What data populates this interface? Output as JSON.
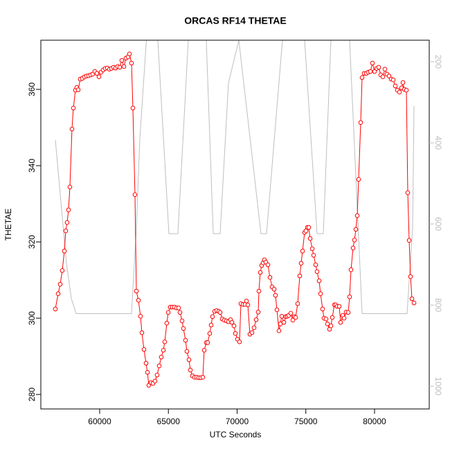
{
  "chart_data": {
    "type": "line",
    "title": "ORCAS RF14 THETAE",
    "x_label": "UTC Seconds",
    "y_label": "THETAE",
    "xlim": [
      55720,
      83980
    ],
    "xticks": [
      60000,
      65000,
      70000,
      75000,
      80000
    ],
    "ylim": [
      276.2,
      372.9
    ],
    "yticks": [
      280,
      300,
      320,
      340,
      360
    ],
    "y2lim": [
      1056,
      147
    ],
    "y2ticks": [
      200,
      400,
      600,
      800,
      1000
    ],
    "y2_color": "#bebebe",
    "series": [
      {
        "color": "#ff0000",
        "markers": true,
        "x": [
          56776,
          56977,
          57128,
          57279,
          57431,
          57531,
          57632,
          57733,
          57834,
          57985,
          58086,
          58237,
          58337,
          58438,
          58589,
          58740,
          58892,
          59043,
          59194,
          59345,
          59496,
          59647,
          59798,
          59950,
          60101,
          60252,
          60403,
          60554,
          60705,
          60856,
          61008,
          61159,
          61310,
          61461,
          61612,
          61763,
          61914,
          62066,
          62166,
          62317,
          62418,
          62569,
          62670,
          62821,
          62972,
          63073,
          63224,
          63375,
          63476,
          63577,
          63728,
          63879,
          64030,
          64181,
          64332,
          64484,
          64635,
          64735,
          64887,
          64987,
          65138,
          65290,
          65441,
          65592,
          65743,
          65844,
          65995,
          66096,
          66247,
          66348,
          66499,
          66600,
          66751,
          66902,
          67053,
          67204,
          67355,
          67506,
          67607,
          67758,
          67859,
          68010,
          68111,
          68212,
          68363,
          68514,
          68665,
          68766,
          68917,
          69068,
          69219,
          69370,
          69522,
          69622,
          69773,
          69874,
          70025,
          70176,
          70277,
          70428,
          70580,
          70680,
          70781,
          70932,
          71083,
          71234,
          71386,
          71537,
          71587,
          71688,
          71789,
          71889,
          71990,
          72091,
          72242,
          72393,
          72544,
          72695,
          72796,
          72897,
          73048,
          73149,
          73250,
          73401,
          73552,
          73653,
          73753,
          73905,
          74056,
          74157,
          74257,
          74408,
          74560,
          74660,
          74761,
          74912,
          75013,
          75114,
          75214,
          75315,
          75466,
          75567,
          75718,
          75819,
          75970,
          76071,
          76222,
          76323,
          76474,
          76575,
          76726,
          76827,
          76927,
          77079,
          77179,
          77280,
          77431,
          77532,
          77683,
          77784,
          77935,
          78086,
          78187,
          78288,
          78439,
          78540,
          78640,
          78741,
          78842,
          78993,
          79094,
          79245,
          79396,
          79547,
          79698,
          79849,
          80001,
          80152,
          80303,
          80454,
          80605,
          80756,
          80907,
          81059,
          81210,
          81361,
          81512,
          81663,
          81814,
          81965,
          82066,
          82167,
          82318,
          82419,
          82520,
          82620,
          82721,
          82872
        ],
        "values": [
          302.4,
          306.4,
          308.9,
          312.5,
          317.6,
          322.9,
          325.1,
          328.4,
          334.4,
          349.6,
          355.1,
          359.8,
          360.5,
          359.9,
          362.7,
          362.9,
          363.3,
          363.5,
          363.6,
          363.8,
          364.0,
          364.7,
          364.2,
          363.3,
          364.5,
          365.1,
          365.5,
          365.6,
          365.3,
          365.5,
          365.8,
          365.6,
          366.0,
          365.8,
          367.6,
          366.0,
          368.2,
          368.5,
          369.3,
          366.9,
          355.1,
          332.4,
          307.1,
          304.7,
          300.5,
          296.2,
          291.8,
          288.2,
          285.8,
          282.4,
          283.1,
          282.9,
          283.5,
          285.1,
          287.5,
          289.8,
          291.6,
          293.8,
          298.7,
          301.5,
          302.9,
          302.9,
          302.9,
          302.7,
          302.7,
          301.5,
          299.3,
          297.3,
          294.2,
          291.3,
          289.1,
          286.4,
          284.9,
          284.5,
          284.5,
          284.4,
          284.4,
          284.5,
          291.6,
          293.6,
          293.6,
          296.0,
          298.2,
          300.4,
          301.8,
          302.0,
          301.8,
          301.5,
          299.8,
          299.5,
          299.3,
          299.1,
          299.6,
          298.9,
          298.0,
          296.0,
          294.5,
          293.8,
          303.8,
          303.6,
          303.6,
          304.5,
          303.5,
          295.8,
          296.2,
          297.5,
          299.6,
          301.6,
          307.1,
          312.0,
          313.8,
          314.5,
          315.3,
          314.7,
          314.0,
          310.7,
          308.2,
          307.6,
          306.0,
          302.2,
          296.7,
          298.5,
          300.5,
          298.9,
          300.4,
          300.5,
          300.7,
          301.3,
          299.5,
          300.4,
          300.2,
          303.8,
          311.1,
          314.4,
          317.6,
          322.5,
          322.9,
          323.8,
          323.8,
          320.9,
          318.2,
          316.5,
          314.0,
          312.2,
          309.8,
          306.4,
          302.4,
          300.0,
          299.8,
          298.5,
          297.1,
          298.0,
          300.2,
          303.5,
          303.5,
          303.1,
          303.1,
          298.9,
          300.7,
          300.0,
          301.6,
          301.5,
          305.6,
          312.7,
          318.4,
          320.5,
          323.3,
          326.9,
          336.4,
          351.3,
          363.1,
          364.2,
          364.2,
          364.5,
          364.7,
          366.9,
          364.7,
          365.5,
          365.8,
          363.8,
          363.3,
          365.3,
          364.0,
          363.5,
          362.7,
          362.5,
          360.9,
          359.8,
          359.3,
          360.4,
          361.8,
          360.0,
          359.8,
          332.9,
          320.4,
          310.9,
          305.1,
          304.0
        ]
      },
      {
        "color": "#bebebe",
        "axis": "y2",
        "markers": false,
        "x": [
          56776,
          57179,
          57582,
          57934,
          58287,
          62317,
          62670,
          62922,
          63526,
          64232,
          65038,
          65693,
          66449,
          67154,
          67758,
          68262,
          68766,
          69370,
          70126,
          71738,
          72141,
          73300,
          73905,
          74912,
          75819,
          76273,
          76827,
          77431,
          78187,
          79094,
          82368,
          82771,
          82872
        ],
        "values": [
          393,
          544,
          697,
          783,
          821,
          821,
          612,
          390,
          82,
          147,
          624,
          624,
          147,
          82,
          147,
          624,
          624,
          253,
          147,
          624,
          624,
          147,
          82,
          147,
          624,
          624,
          147,
          82,
          147,
          821,
          821,
          612,
          309
        ]
      }
    ]
  }
}
